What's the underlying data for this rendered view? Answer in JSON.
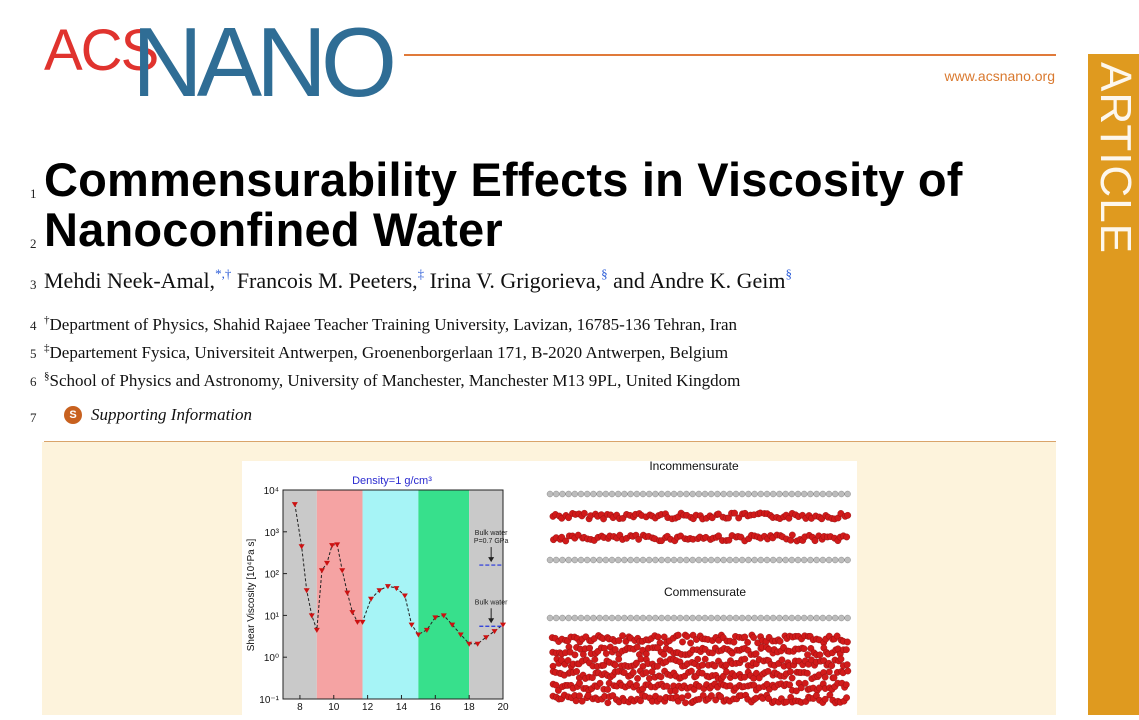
{
  "journal": {
    "logo_part1": "ACS",
    "logo_part2": "NANO",
    "url": "www.acsnano.org",
    "section": "ARTICLE",
    "brand_colors": {
      "acs_red": "#e0332e",
      "nano_blue": "#2f6d95",
      "rule_orange": "#e07a3a",
      "section_bar": "#df9a1f"
    }
  },
  "line_numbers": [
    "1",
    "2",
    "3",
    "4",
    "5",
    "6",
    "7"
  ],
  "title_lines": [
    "Commensurability Effects in Viscosity of",
    "Nanoconfined Water"
  ],
  "authors": [
    {
      "name": "Mehdi Neek-Amal,",
      "marks": "*,†"
    },
    {
      "name": "Francois M. Peeters,",
      "marks": "‡"
    },
    {
      "name": "Irina V. Grigorieva,",
      "marks": "§"
    },
    {
      "name": "and Andre K. Geim",
      "marks": "§"
    }
  ],
  "affiliations": [
    {
      "mark": "†",
      "text": "Department of Physics, Shahid Rajaee Teacher Training University, Lavizan, 16785-136 Tehran, Iran"
    },
    {
      "mark": "‡",
      "text": "Departement Fysica, Universiteit Antwerpen, Groenenborgerlaan 171, B-2020 Antwerpen, Belgium"
    },
    {
      "mark": "§",
      "text": "School of Physics and Astronomy, University of Manchester, Manchester M13 9PL, United Kingdom"
    }
  ],
  "supporting_info": {
    "icon_letter": "S",
    "label": "Supporting Information"
  },
  "figure": {
    "chart_data": {
      "type": "line",
      "title": "Density=1 g/cm³",
      "ylabel": "Shear Viscosity [10⁴Pa s]",
      "xlabel": "",
      "xlim": [
        7,
        20
      ],
      "ylim_log10": [
        -1,
        4
      ],
      "x_ticks": [
        "8",
        "10",
        "12",
        "14",
        "16",
        "18",
        "20"
      ],
      "y_ticks": [
        "10⁻¹",
        "10⁰",
        "10¹",
        "10²",
        "10³",
        "10⁴"
      ],
      "y_scale": "log",
      "bands": [
        {
          "from": 7,
          "to": 9,
          "color": "#c9c9c9"
        },
        {
          "from": 9,
          "to": 11.7,
          "color": "#f5a3a3"
        },
        {
          "from": 11.7,
          "to": 15,
          "color": "#a6f4f6"
        },
        {
          "from": 15,
          "to": 18,
          "color": "#37e08c"
        },
        {
          "from": 18,
          "to": 20,
          "color": "#c9c9c9"
        }
      ],
      "series": [
        {
          "x": [
            7.7,
            8.1,
            8.4,
            8.7,
            9.0,
            9.3,
            9.6,
            9.9,
            10.2,
            10.5,
            10.8,
            11.1,
            11.4,
            11.7,
            12.2,
            12.7,
            13.2,
            13.7,
            14.2,
            14.6,
            15.0,
            15.5,
            16.0,
            16.5,
            17.0,
            17.5,
            18.0,
            18.5,
            19.0,
            19.5,
            20.0
          ],
          "y": [
            4600,
            450,
            40,
            10,
            4.5,
            120,
            180,
            480,
            500,
            120,
            35,
            12,
            7,
            7,
            25,
            40,
            50,
            45,
            30,
            6,
            3.5,
            4.5,
            9,
            10,
            6,
            3.5,
            2.1,
            2.1,
            3,
            4.2,
            6
          ],
          "color": "#cc1111"
        }
      ],
      "annotations": [
        {
          "lines": [
            "Bulk water",
            "P=0.7 GPa"
          ],
          "y": 160
        },
        {
          "lines": [
            "Bulk water"
          ],
          "y": 5.5
        }
      ]
    },
    "panel_titles": [
      "Incommensurate",
      "Commensurate"
    ],
    "colors": {
      "carbon": "#bdbdbd",
      "oxygen": "#d11a1a",
      "line": "#222222",
      "dash": "#2233dd",
      "title": "#2b2bd0"
    }
  }
}
